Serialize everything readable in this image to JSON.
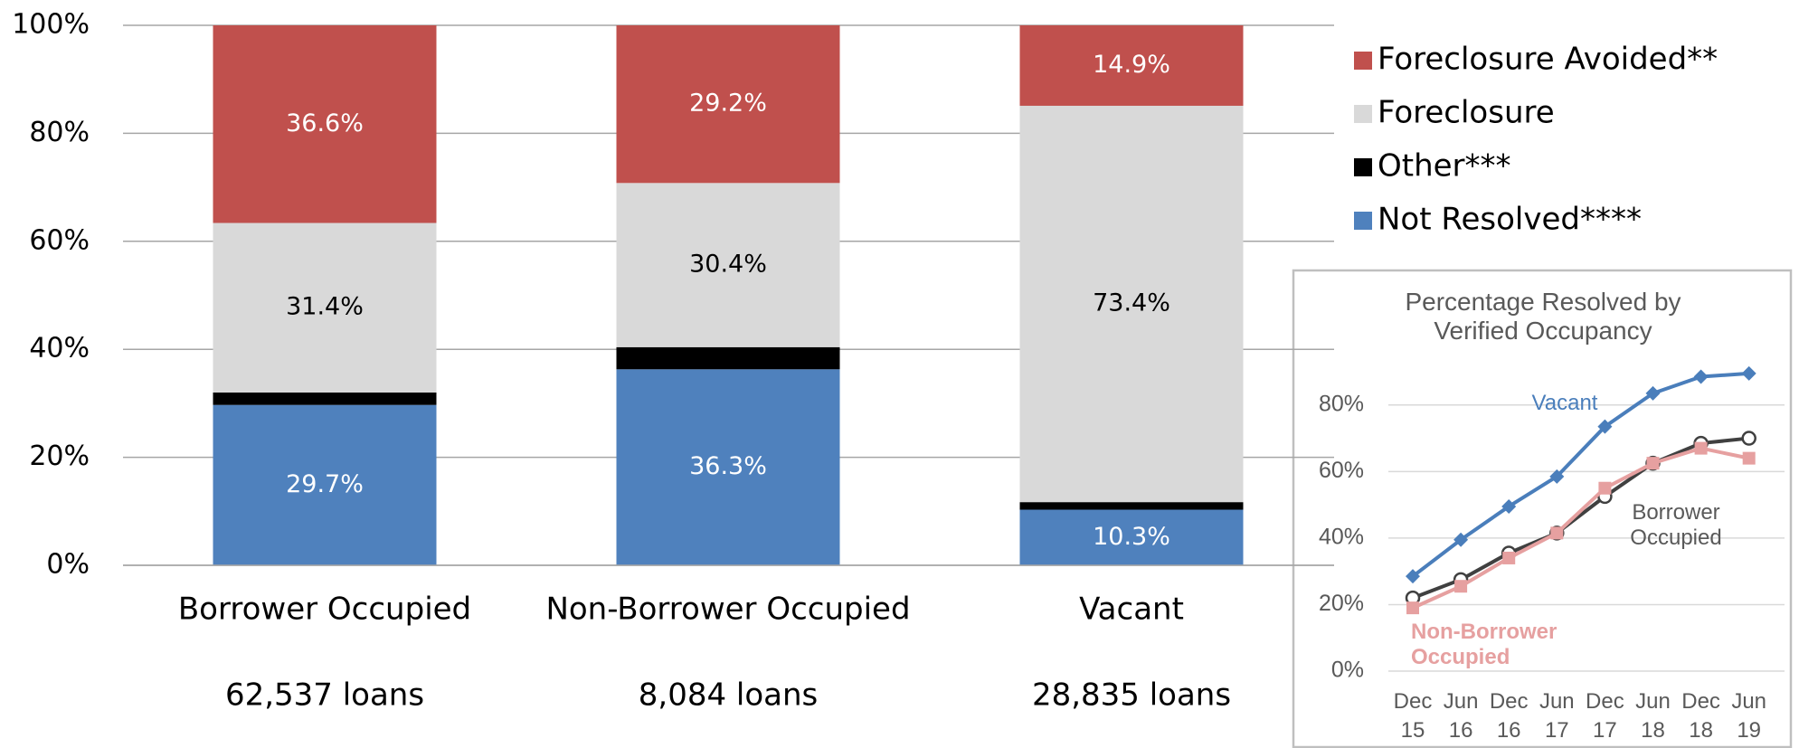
{
  "chart_data": [
    {
      "type": "stacked_bar",
      "categories": [
        "Borrower Occupied",
        "Non-Borrower Occupied",
        "Vacant"
      ],
      "category_notes": [
        "62,537 loans",
        "8,084 loans",
        "28,835 loans"
      ],
      "series": [
        {
          "name": "Not Resolved****",
          "color": "#4f81bd",
          "values": [
            29.7,
            36.3,
            10.3
          ],
          "value_labels": [
            "29.7%",
            "36.3%",
            "10.3%"
          ],
          "label_color": "#ffffff"
        },
        {
          "name": "Other***",
          "color": "#000000",
          "values": [
            2.3,
            4.1,
            1.4
          ]
        },
        {
          "name": "Foreclosure",
          "color": "#d9d9d9",
          "values": [
            31.4,
            30.4,
            73.4
          ],
          "value_labels": [
            "31.4%",
            "30.4%",
            "73.4%"
          ],
          "label_color": "#000000"
        },
        {
          "name": "Foreclosure Avoided**",
          "color": "#c0504d",
          "values": [
            36.6,
            29.2,
            14.9
          ],
          "value_labels": [
            "36.6%",
            "29.2%",
            "14.9%"
          ],
          "label_color": "#ffffff"
        }
      ],
      "ylim": [
        0,
        100
      ],
      "yticks": [
        {
          "value": 0,
          "label": "0%"
        },
        {
          "value": 20,
          "label": "20%"
        },
        {
          "value": 40,
          "label": "40%"
        },
        {
          "value": 60,
          "label": "60%"
        },
        {
          "value": 80,
          "label": "80%"
        },
        {
          "value": 100,
          "label": "100%"
        }
      ],
      "grid": true,
      "legend": "top-right"
    },
    {
      "type": "line",
      "title": "Percentage Resolved by Verified Occupancy",
      "categories": [
        "Dec 15",
        "Jun 16",
        "Dec 16",
        "Jun 17",
        "Dec 17",
        "Jun 18",
        "Dec 18",
        "Jun 19"
      ],
      "series": [
        {
          "name": "Vacant",
          "color": "#4a7ebb",
          "marker": "diamond",
          "values": [
            28.5,
            39.5,
            49.5,
            58.5,
            73.5,
            83.5,
            88.5,
            89.5
          ]
        },
        {
          "name": "Borrower Occupied",
          "color": "#404040",
          "marker": "open-circle",
          "values": [
            22,
            27.5,
            35.5,
            41.5,
            52.5,
            62.5,
            68.5,
            70
          ]
        },
        {
          "name": "Non-Borrower Occupied",
          "color": "#e6a0a0",
          "marker": "square",
          "values": [
            19,
            25.5,
            34,
            41.5,
            55,
            62.5,
            67,
            64
          ]
        }
      ],
      "ylim": [
        0,
        90
      ],
      "yticks": [
        {
          "value": 0,
          "label": "0%"
        },
        {
          "value": 20,
          "label": "20%"
        },
        {
          "value": 40,
          "label": "40%"
        },
        {
          "value": 60,
          "label": "60%"
        },
        {
          "value": 80,
          "label": "80%"
        }
      ],
      "grid": true
    }
  ]
}
